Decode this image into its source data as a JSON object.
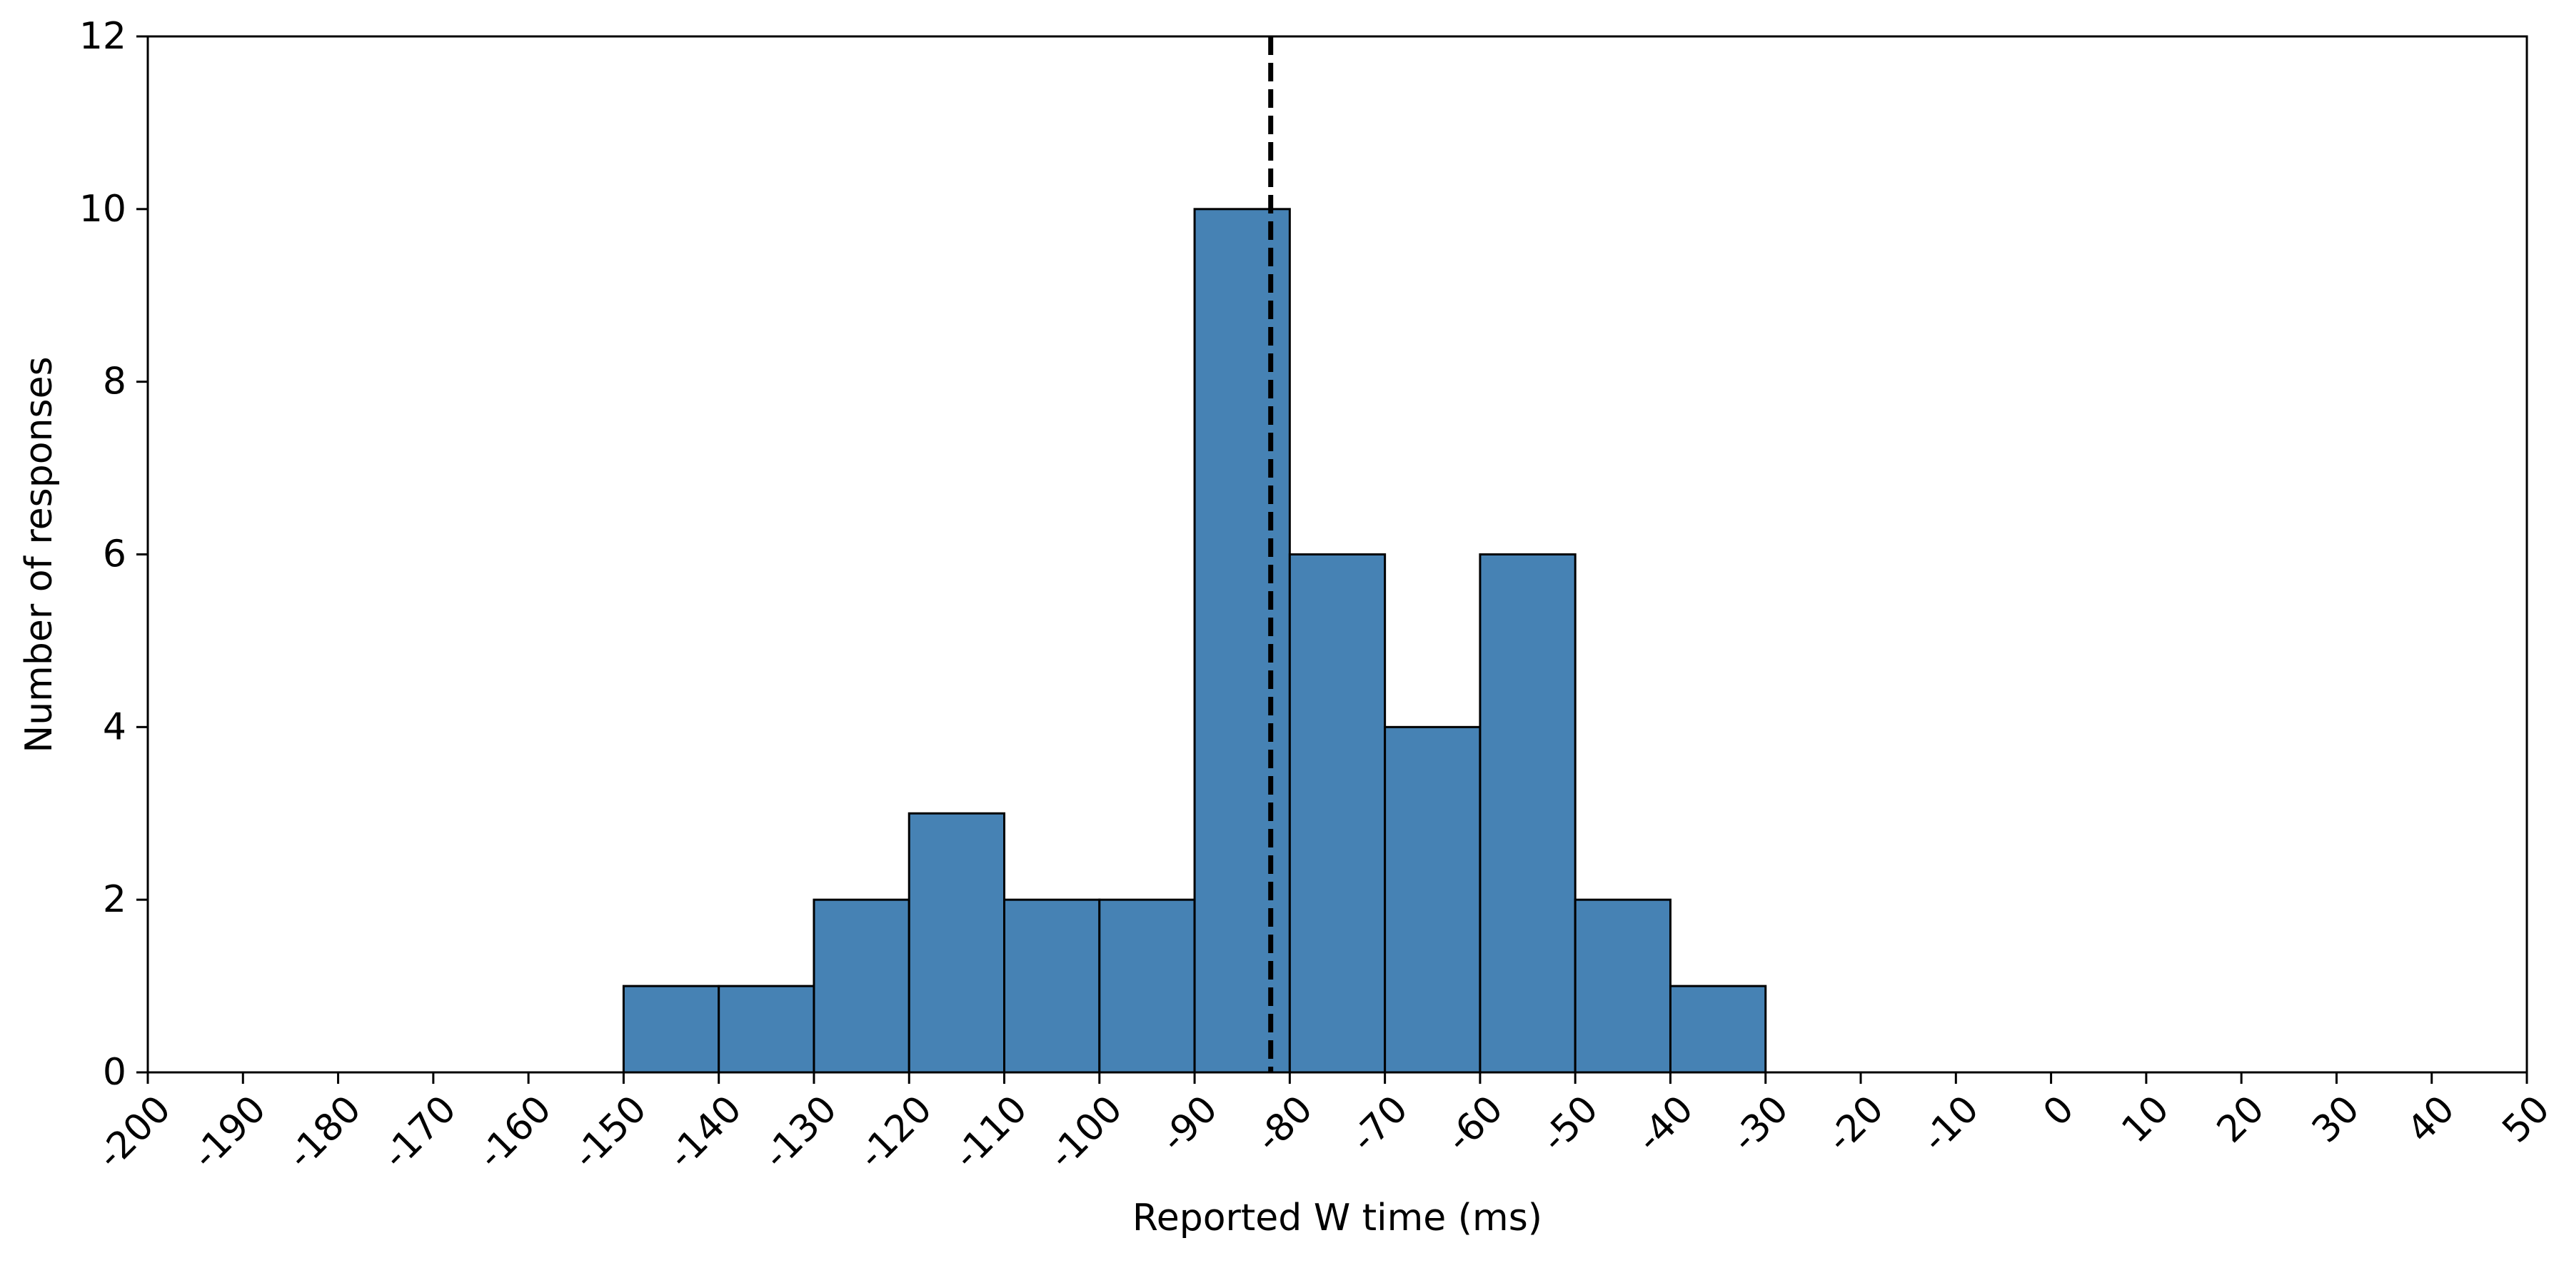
{
  "chart_data": {
    "type": "bar",
    "subtype": "histogram",
    "title": "",
    "xlabel": "Reported W time (ms)",
    "ylabel": "Number of responses",
    "xlim": [
      -200,
      50
    ],
    "ylim": [
      0,
      12
    ],
    "x_ticks": [
      -200,
      -190,
      -180,
      -170,
      -160,
      -150,
      -140,
      -130,
      -120,
      -110,
      -100,
      -90,
      -80,
      -70,
      -60,
      -50,
      -40,
      -30,
      -20,
      -10,
      0,
      10,
      20,
      30,
      40,
      50
    ],
    "y_ticks": [
      0,
      2,
      4,
      6,
      8,
      10,
      12
    ],
    "bin_width": 10,
    "bins": [
      {
        "start": -150,
        "end": -140,
        "count": 1
      },
      {
        "start": -140,
        "end": -130,
        "count": 1
      },
      {
        "start": -130,
        "end": -120,
        "count": 2
      },
      {
        "start": -120,
        "end": -110,
        "count": 3
      },
      {
        "start": -110,
        "end": -100,
        "count": 2
      },
      {
        "start": -100,
        "end": -90,
        "count": 2
      },
      {
        "start": -90,
        "end": -80,
        "count": 10
      },
      {
        "start": -80,
        "end": -70,
        "count": 6
      },
      {
        "start": -70,
        "end": -60,
        "count": 4
      },
      {
        "start": -60,
        "end": -50,
        "count": 6
      },
      {
        "start": -50,
        "end": -40,
        "count": 2
      },
      {
        "start": -40,
        "end": -30,
        "count": 1
      }
    ],
    "reference_line": {
      "x": -82,
      "style": "dashed",
      "color": "#000000"
    },
    "bar_color": "#4682b4",
    "edge_color": "#000000",
    "grid": false,
    "legend": "none"
  }
}
